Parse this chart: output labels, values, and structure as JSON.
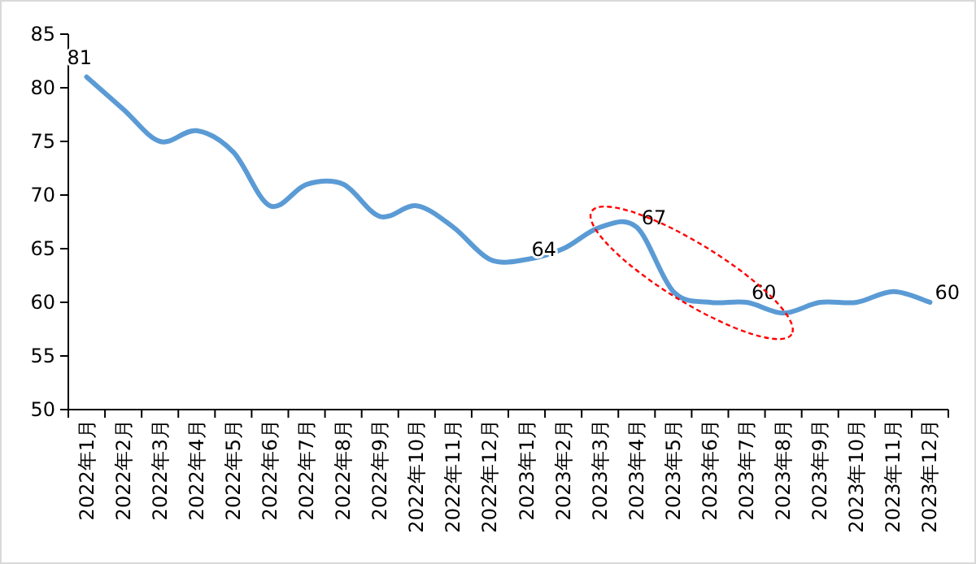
{
  "chart_data": {
    "type": "line",
    "categories": [
      "2022年1月",
      "2022年2月",
      "2022年3月",
      "2022年4月",
      "2022年5月",
      "2022年6月",
      "2022年7月",
      "2022年8月",
      "2022年9月",
      "2022年10月",
      "2022年11月",
      "2022年12月",
      "2023年1月",
      "2023年2月",
      "2023年3月",
      "2023年4月",
      "2023年5月",
      "2023年6月",
      "2023年7月",
      "2023年8月",
      "2023年9月",
      "2023年10月",
      "2023年11月",
      "2023年12月"
    ],
    "series": [
      {
        "color": "#5b9bd5",
        "values": [
          81,
          78,
          75,
          76,
          74,
          69,
          71,
          71,
          68,
          69,
          67,
          64,
          64,
          65,
          67,
          67,
          61,
          60,
          60,
          59,
          60,
          60,
          61,
          60
        ],
        "value_labels": [
          "81",
          null,
          null,
          null,
          null,
          null,
          null,
          null,
          null,
          null,
          null,
          null,
          "64",
          null,
          null,
          "67",
          null,
          null,
          "60",
          null,
          null,
          null,
          null,
          "60"
        ]
      }
    ],
    "ylim": [
      50,
      85
    ],
    "yticks": [
      50,
      55,
      60,
      65,
      70,
      75,
      80,
      85
    ]
  }
}
